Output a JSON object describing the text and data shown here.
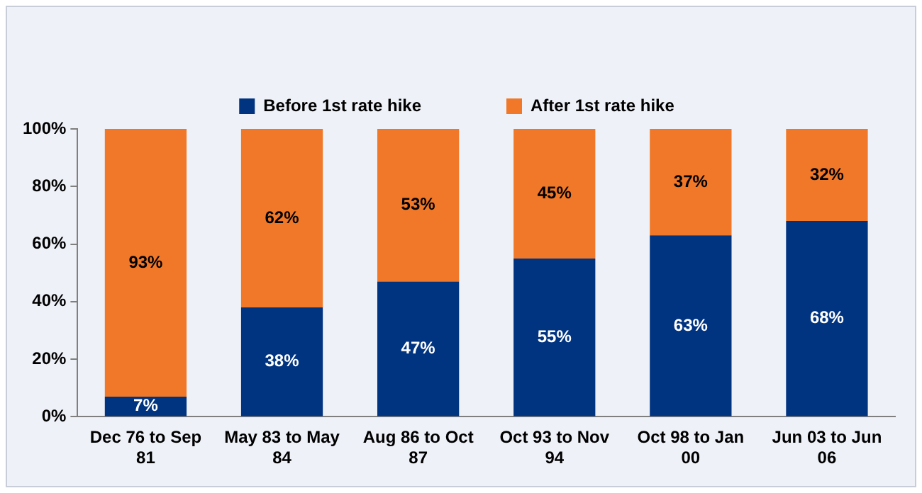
{
  "chart_data": {
    "type": "bar",
    "stacked": true,
    "legend": "top",
    "categories": [
      "Dec 76 to Sep 81",
      "May 83 to May 84",
      "Aug 86 to Oct 87",
      "Oct 93 to Nov 94",
      "Oct 98 to Jan 00",
      "Jun 03 to Jun 06"
    ],
    "series": [
      {
        "name": "Before 1st rate hike",
        "color": "#003380",
        "values": [
          7,
          38,
          47,
          55,
          63,
          68
        ],
        "value_labels": [
          "7%",
          "38%",
          "47%",
          "55%",
          "63%",
          "68%"
        ]
      },
      {
        "name": "After 1st rate hike",
        "color": "#f07828",
        "values": [
          93,
          62,
          53,
          45,
          37,
          32
        ],
        "value_labels": [
          "93%",
          "62%",
          "53%",
          "45%",
          "37%",
          "32%"
        ]
      }
    ],
    "ylim": [
      0,
      100
    ],
    "yticks": [
      {
        "value": 0,
        "label": "0%"
      },
      {
        "value": 20,
        "label": "20%"
      },
      {
        "value": 40,
        "label": "40%"
      },
      {
        "value": 60,
        "label": "60%"
      },
      {
        "value": 80,
        "label": "80%"
      },
      {
        "value": 100,
        "label": "100%"
      }
    ],
    "grid": false
  }
}
